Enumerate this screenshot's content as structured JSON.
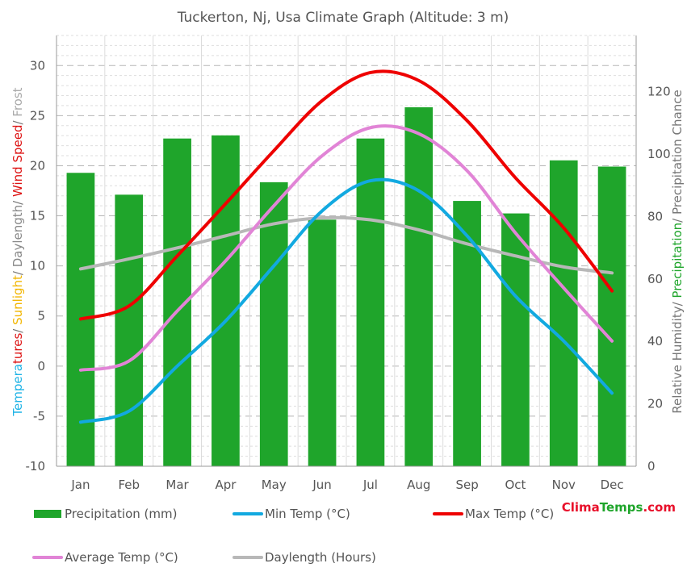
{
  "chart_data": {
    "type": "bar",
    "title": "Tuckerton, Nj, Usa Climate Graph (Altitude: 3 m)",
    "categories": [
      "Jan",
      "Feb",
      "Mar",
      "Apr",
      "May",
      "Jun",
      "Jul",
      "Aug",
      "Sep",
      "Oct",
      "Nov",
      "Dec"
    ],
    "left_axis": {
      "title_segments": [
        {
          "text": "Tempera",
          "color": "#1eb3e6"
        },
        {
          "text": "tures",
          "color": "#dd1111"
        },
        {
          "text": "/ ",
          "color": "#777777"
        },
        {
          "text": "Sunlight",
          "color": "#f2b600"
        },
        {
          "text": "/ ",
          "color": "#777777"
        },
        {
          "text": "Daylength",
          "color": "#888888"
        },
        {
          "text": "/ ",
          "color": "#777777"
        },
        {
          "text": "Wind Speed",
          "color": "#dd1111"
        },
        {
          "text": "/ ",
          "color": "#777777"
        },
        {
          "text": "Frost",
          "color": "#aaaaaa"
        }
      ],
      "ylim": [
        -10,
        33
      ],
      "ticks": [
        -10,
        -5,
        0,
        5,
        10,
        15,
        20,
        25,
        30
      ]
    },
    "right_axis": {
      "title_segments": [
        {
          "text": "Relative Humidity",
          "color": "#777777"
        },
        {
          "text": "/ ",
          "color": "#777777"
        },
        {
          "text": "Precipitation",
          "color": "#1fa52b"
        },
        {
          "text": "/ Precipitation Chance",
          "color": "#777777"
        }
      ],
      "ylim": [
        0,
        138
      ],
      "ticks": [
        0,
        20,
        40,
        60,
        80,
        100,
        120
      ]
    },
    "grid": true,
    "series": [
      {
        "name": "Precipitation (mm)",
        "kind": "bar",
        "axis": "right",
        "color": "#1fa52b",
        "values": [
          94,
          87,
          105,
          106,
          91,
          79,
          105,
          115,
          85,
          81,
          98,
          96
        ]
      },
      {
        "name": "Min Temp (°C)",
        "kind": "line",
        "axis": "left",
        "color": "#12a9e0",
        "values": [
          -5.6,
          -4.5,
          0.0,
          4.5,
          10.0,
          15.5,
          18.5,
          17.5,
          13.0,
          7.0,
          2.5,
          -2.7
        ]
      },
      {
        "name": "Max Temp (°C)",
        "kind": "line",
        "axis": "left",
        "color": "#ee0000",
        "values": [
          4.7,
          6.0,
          11.0,
          16.2,
          21.5,
          26.5,
          29.3,
          28.5,
          24.5,
          18.8,
          13.8,
          7.5
        ]
      },
      {
        "name": "Average Temp (°C)",
        "kind": "line",
        "axis": "left",
        "color": "#e184d6",
        "values": [
          -0.4,
          0.5,
          5.5,
          10.5,
          16.0,
          21.0,
          23.8,
          23.2,
          19.5,
          13.3,
          7.8,
          2.5
        ]
      },
      {
        "name": "Daylength (Hours)",
        "kind": "line",
        "axis": "left",
        "color": "#b8b8b8",
        "values": [
          9.7,
          10.7,
          11.8,
          13.0,
          14.2,
          14.8,
          14.6,
          13.6,
          12.2,
          11.0,
          9.9,
          9.3
        ]
      }
    ],
    "legend": [
      {
        "label": "Precipitation (mm)",
        "type": "bar",
        "color": "#1fa52b"
      },
      {
        "label": "Min Temp (°C)",
        "type": "line",
        "color": "#12a9e0"
      },
      {
        "label": "Max Temp (°C)",
        "type": "line",
        "color": "#ee0000"
      },
      {
        "label": "Average Temp (°C)",
        "type": "line",
        "color": "#e184d6"
      },
      {
        "label": "Daylength (Hours)",
        "type": "line",
        "color": "#b8b8b8"
      }
    ],
    "legend_position": "bottom"
  },
  "brand": {
    "part1": "Clima",
    "part2": "Temps",
    "part3": ".com"
  }
}
